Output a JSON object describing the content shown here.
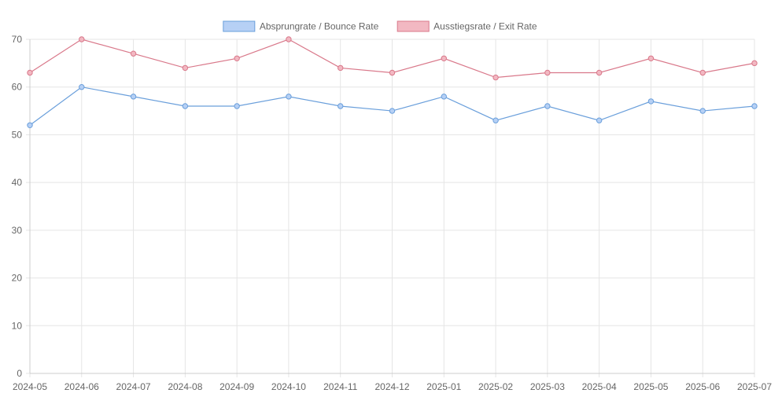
{
  "chart_data": {
    "type": "line",
    "title": "",
    "xlabel": "",
    "ylabel": "",
    "categories": [
      "2024-05",
      "2024-06",
      "2024-07",
      "2024-08",
      "2024-09",
      "2024-10",
      "2024-11",
      "2024-12",
      "2025-01",
      "2025-02",
      "2025-03",
      "2025-04",
      "2025-05",
      "2025-06",
      "2025-07"
    ],
    "ylim": [
      0,
      70
    ],
    "yticks": [
      0,
      10,
      20,
      30,
      40,
      50,
      60,
      70
    ],
    "grid": true,
    "legend_position": "top-center",
    "series": [
      {
        "name": "Absprungrate / Bounce Rate",
        "color": "#6a9fdb",
        "fill": "#b6d0f5",
        "values": [
          52,
          60,
          58,
          56,
          56,
          58,
          56,
          55,
          58,
          53,
          56,
          53,
          57,
          55,
          56
        ]
      },
      {
        "name": "Ausstiegsrate / Exit Rate",
        "color": "#d9788a",
        "fill": "#f2b8c2",
        "values": [
          63,
          70,
          67,
          64,
          66,
          70,
          64,
          63,
          66,
          62,
          63,
          63,
          66,
          63,
          65
        ]
      }
    ]
  }
}
